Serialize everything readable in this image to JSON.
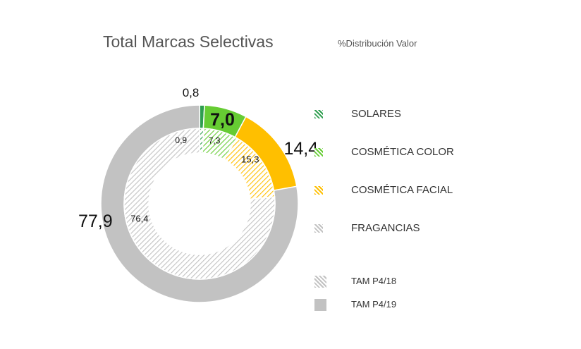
{
  "chart_data": {
    "type": "donut",
    "title": "Total Marcas Selectivas",
    "subtitle": "%Distribución Valor",
    "categories": [
      "SOLARES",
      "COSMÉTICA COLOR",
      "COSMÉTICA FACIAL",
      "FRAGANCIAS"
    ],
    "colors": [
      "#2e9e4f",
      "#66cc33",
      "#ffbf00",
      "#c2c2c2"
    ],
    "series": [
      {
        "name": "TAM P4/18",
        "ring": "inner",
        "pattern": "hatched",
        "values": [
          0.9,
          7.3,
          15.3,
          76.4
        ],
        "labels": [
          "0,9",
          "7,3",
          "15,3",
          "76,4"
        ]
      },
      {
        "name": "TAM P4/19",
        "ring": "outer",
        "pattern": "solid",
        "values": [
          0.8,
          7.0,
          14.4,
          77.9
        ],
        "labels": [
          "0,8",
          "7,0",
          "14,4",
          "77,9"
        ]
      }
    ],
    "legend_position": "right"
  }
}
